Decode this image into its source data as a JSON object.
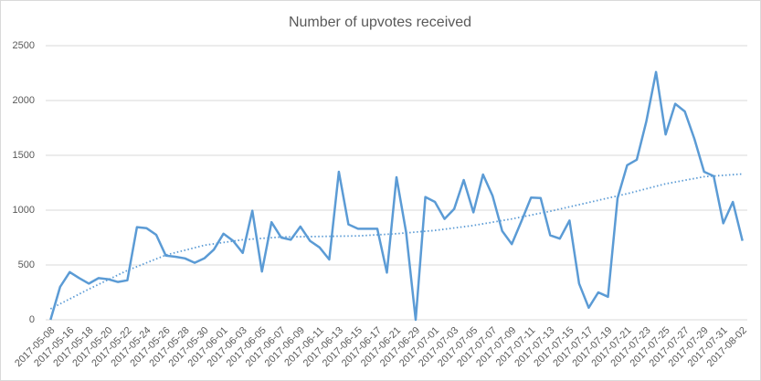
{
  "chart_data": {
    "type": "line",
    "title": "Number of upvotes received",
    "categories": [
      "2017-05-08",
      null,
      "2017-05-16",
      null,
      "2017-05-18",
      null,
      "2017-05-20",
      null,
      "2017-05-22",
      null,
      "2017-05-24",
      null,
      "2017-05-26",
      null,
      "2017-05-28",
      null,
      "2017-05-30",
      null,
      "2017-06-01",
      null,
      "2017-06-03",
      null,
      "2017-06-05",
      null,
      "2017-06-07",
      null,
      "2017-06-09",
      null,
      "2017-06-11",
      null,
      "2017-06-13",
      null,
      "2017-06-15",
      null,
      "2017-06-17",
      null,
      "2017-06-21",
      null,
      "2017-06-29",
      null,
      "2017-07-01",
      null,
      "2017-07-03",
      null,
      "2017-07-05",
      null,
      "2017-07-07",
      null,
      "2017-07-09",
      null,
      "2017-07-11",
      null,
      "2017-07-13",
      null,
      "2017-07-15",
      null,
      "2017-07-17",
      null,
      "2017-07-19",
      null,
      "2017-07-21",
      null,
      "2017-07-23",
      null,
      "2017-07-25",
      null,
      "2017-07-27",
      null,
      "2017-07-29",
      null,
      "2017-07-31",
      null,
      "2017-08-02"
    ],
    "color": "#5b9bd5",
    "values": [
      0,
      300,
      435,
      380,
      330,
      380,
      370,
      345,
      360,
      845,
      835,
      775,
      585,
      575,
      560,
      520,
      560,
      640,
      785,
      720,
      610,
      995,
      440,
      890,
      750,
      730,
      850,
      720,
      660,
      550,
      1350,
      870,
      830,
      830,
      830,
      430,
      1300,
      800,
      0,
      1120,
      1075,
      920,
      1010,
      1275,
      980,
      1325,
      1130,
      810,
      690,
      900,
      1115,
      1110,
      770,
      740,
      905,
      330,
      110,
      250,
      210,
      1110,
      1410,
      1460,
      1810,
      2260,
      1690,
      1970,
      1900,
      1650,
      1350,
      1310,
      880,
      1075,
      720
    ],
    "trendline": {
      "x": [
        0,
        4,
        8,
        12,
        16,
        20,
        24,
        28,
        32,
        36,
        40,
        44,
        48,
        52,
        56,
        60,
        64,
        68,
        72
      ],
      "values": [
        100,
        280,
        450,
        590,
        680,
        730,
        755,
        760,
        765,
        785,
        815,
        860,
        920,
        990,
        1070,
        1150,
        1240,
        1305,
        1330
      ]
    },
    "ylim": [
      0,
      2500
    ],
    "yticks": [
      0,
      500,
      1000,
      1500,
      2000,
      2500
    ],
    "grid": true
  }
}
